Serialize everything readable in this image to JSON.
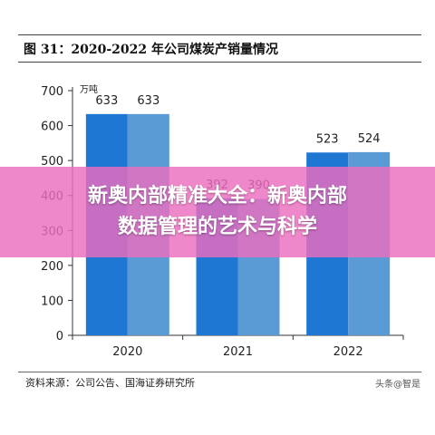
{
  "header": {
    "title": "图 31：2020-2022 年公司煤炭产销量情况"
  },
  "footer": {
    "source": "资料来源：公司公告、国海证券研究所",
    "watermark": "头条@智是"
  },
  "overlay": {
    "line1": "新奥内部精准大全：新奥内部",
    "line2": "数据管理的艺术与科学"
  },
  "colors": {
    "series_1": "#1f77d4",
    "series_2": "#5b9bd5",
    "overlay": "#ec6ebe"
  },
  "chart_data": {
    "type": "bar",
    "categories": [
      "2020",
      "2021",
      "2022"
    ],
    "series": [
      {
        "values": [
          633,
          392,
          523
        ]
      },
      {
        "values": [
          633,
          390,
          524
        ]
      }
    ],
    "ylabel": "万吨",
    "ylim": [
      0,
      700
    ],
    "yticks": [
      0,
      100,
      200,
      300,
      400,
      500,
      600,
      700
    ],
    "grid": false,
    "legend": "none"
  }
}
